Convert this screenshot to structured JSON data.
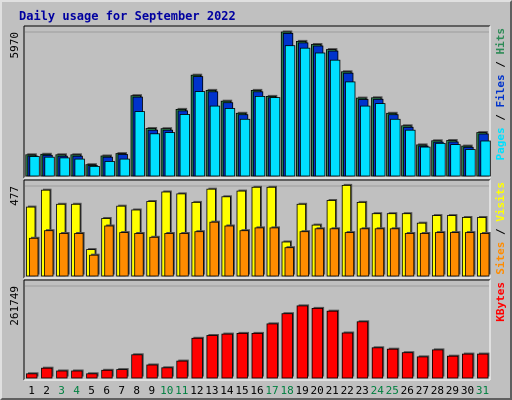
{
  "chart_data": {
    "type": "bar",
    "title": "Daily usage for September 2022",
    "categories": [
      "1",
      "2",
      "3",
      "4",
      "5",
      "6",
      "7",
      "8",
      "9",
      "10",
      "11",
      "12",
      "13",
      "14",
      "15",
      "16",
      "17",
      "18",
      "19",
      "20",
      "21",
      "22",
      "23",
      "24",
      "25",
      "26",
      "27",
      "28",
      "29",
      "30",
      "31"
    ],
    "weekend_days": [
      3,
      4,
      10,
      11,
      17,
      18,
      24,
      25,
      31
    ],
    "colors": {
      "hits": "#2e8b57",
      "files": "#0033cc",
      "pages": "#00e0ff",
      "visits": "#ffff00",
      "sites": "#ff8c00",
      "kbytes": "#ff0000",
      "weekday_label": "#000000",
      "weekend_label": "#008040"
    },
    "panels": [
      {
        "id": "hits",
        "max_label": "5970",
        "ymax": 5970,
        "legend": [
          {
            "text": "Pages",
            "color": "#00e0ff"
          },
          {
            "text": " / ",
            "color": "#000000"
          },
          {
            "text": "Files",
            "color": "#0033cc"
          },
          {
            "text": " / ",
            "color": "#000000"
          },
          {
            "text": "Hits",
            "color": "#2e8b57"
          }
        ],
        "series": [
          {
            "name": "Hits",
            "color": "#2e8b57",
            "values": [
              880,
              900,
              880,
              880,
              470,
              830,
              930,
              3330,
              1970,
              1960,
              2760,
              4180,
              3550,
              3100,
              2600,
              3550,
              3300,
              5970,
              5580,
              5450,
              5240,
              4320,
              3230,
              3240,
              2600,
              2080,
              1290,
              1460,
              1470,
              1240,
              1800
            ]
          },
          {
            "name": "Files",
            "color": "#0033cc",
            "values": [
              830,
              860,
              820,
              820,
              430,
              780,
              890,
              3270,
              1900,
              1900,
              2700,
              4120,
              3490,
              3040,
              2540,
              3490,
              3240,
              5910,
              5520,
              5390,
              5180,
              4260,
              3170,
              3180,
              2540,
              2020,
              1240,
              1400,
              1410,
              1190,
              1740
            ]
          },
          {
            "name": "Pages",
            "color": "#00e0ff",
            "values": [
              810,
              780,
              750,
              700,
              400,
              600,
              700,
              2670,
              1750,
              1800,
              2550,
              3500,
              2900,
              2800,
              2350,
              3300,
              3250,
              5400,
              5300,
              5100,
              4800,
              3900,
              2900,
              3000,
              2350,
              1900,
              1200,
              1350,
              1300,
              1100,
              1450
            ]
          }
        ]
      },
      {
        "id": "visits",
        "max_label": "477",
        "ymax": 477,
        "legend": [
          {
            "text": "Sites",
            "color": "#ff8c00"
          },
          {
            "text": " / ",
            "color": "#000000"
          },
          {
            "text": "Visits",
            "color": "#ffff00"
          }
        ],
        "series": [
          {
            "name": "Visits",
            "color": "#ffff00",
            "values": [
              365,
              455,
              380,
              380,
              140,
              305,
              370,
              350,
              395,
              445,
              435,
              390,
              460,
              420,
              450,
              470,
              470,
              180,
              380,
              270,
              400,
              480,
              390,
              330,
              330,
              330,
              280,
              320,
              320,
              310,
              310
            ]
          },
          {
            "name": "Sites",
            "color": "#ff8c00",
            "values": [
              200,
              240,
              225,
              225,
              110,
              265,
              230,
              225,
              205,
              225,
              225,
              235,
              285,
              265,
              240,
              255,
              255,
              150,
              235,
              250,
              250,
              230,
              250,
              250,
              250,
              225,
              225,
              230,
              230,
              230,
              225
            ]
          }
        ]
      },
      {
        "id": "kbytes",
        "max_label": "261749",
        "ymax": 261749,
        "legend": [
          {
            "text": "KBytes",
            "color": "#ff0000"
          }
        ],
        "series": [
          {
            "name": "KBytes",
            "color": "#ff0000",
            "values": [
              12000,
              28000,
              20000,
              20000,
              12000,
              22000,
              24000,
              66000,
              37000,
              29000,
              48000,
              113000,
              121000,
              125000,
              127000,
              127000,
              154000,
              183000,
              205000,
              198000,
              190000,
              128000,
              160000,
              86000,
              82000,
              72000,
              60000,
              80000,
              62000,
              68000,
              68000
            ]
          }
        ]
      }
    ]
  }
}
